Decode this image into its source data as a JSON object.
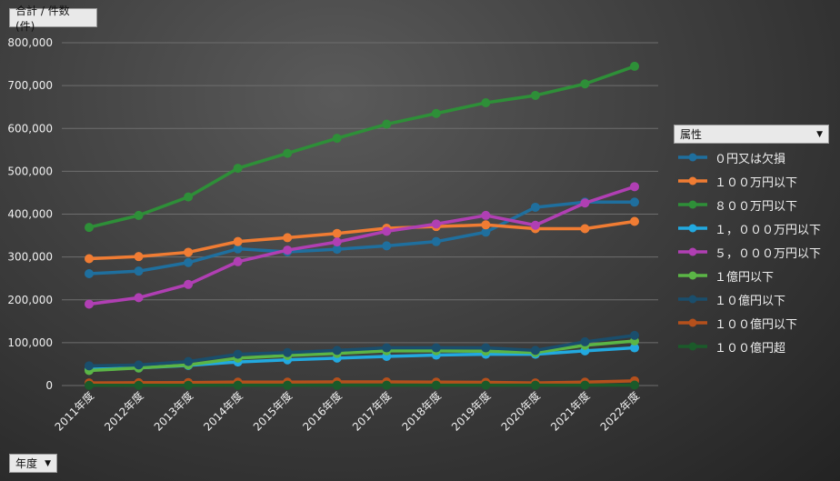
{
  "measure_button": {
    "label": "合計 / 件数 (件)"
  },
  "axis_button": {
    "label": "年度",
    "icon": "dropdown-arrow-icon"
  },
  "legend": {
    "title": "属性",
    "icon": "dropdown-arrow-icon"
  },
  "chart_data": {
    "type": "line",
    "title": "",
    "xlabel": "",
    "ylabel": "",
    "ylim": [
      0,
      800000
    ],
    "yticks": [
      "0",
      "100,000",
      "200,000",
      "300,000",
      "400,000",
      "500,000",
      "600,000",
      "700,000",
      "800,000"
    ],
    "grid": true,
    "legend_position": "right",
    "categories": [
      "2011年度",
      "2012年度",
      "2013年度",
      "2014年度",
      "2015年度",
      "2016年度",
      "2017年度",
      "2018年度",
      "2019年度",
      "2020年度",
      "2021年度",
      "2022年度"
    ],
    "series": [
      {
        "name": "０円又は欠損",
        "color": "#1f6f9e",
        "values": [
          261000,
          267000,
          287000,
          319000,
          312000,
          318000,
          326000,
          336000,
          358000,
          416000,
          428000,
          428000
        ]
      },
      {
        "name": "１００万円以下",
        "color": "#f07c33",
        "values": [
          296000,
          301000,
          311000,
          336000,
          345000,
          355000,
          367000,
          371000,
          375000,
          366000,
          366000,
          383000
        ]
      },
      {
        "name": "８００万円以下",
        "color": "#2e8f38",
        "values": [
          369000,
          397000,
          440000,
          507000,
          542000,
          577000,
          610000,
          635000,
          660000,
          677000,
          704000,
          745000
        ]
      },
      {
        "name": "１，０００万円以下",
        "color": "#22a9e0",
        "values": [
          38000,
          41000,
          47000,
          55000,
          60000,
          64000,
          68000,
          71000,
          73000,
          73000,
          81000,
          88000
        ]
      },
      {
        "name": "５，０００万円以下",
        "color": "#b03fb3",
        "values": [
          190000,
          205000,
          236000,
          289000,
          316000,
          335000,
          360000,
          377000,
          397000,
          374000,
          426000,
          464000
        ]
      },
      {
        "name": "１億円以下",
        "color": "#5bb546",
        "values": [
          35000,
          41000,
          48000,
          64000,
          70000,
          75000,
          81000,
          81000,
          80000,
          77000,
          94000,
          104000
        ]
      },
      {
        "name": "１０億円以下",
        "color": "#1a4e6c",
        "values": [
          46000,
          48000,
          56000,
          73000,
          77000,
          82000,
          88000,
          88000,
          88000,
          82000,
          102000,
          117000
        ]
      },
      {
        "name": "１００億円以下",
        "color": "#b5501c",
        "values": [
          6000,
          6500,
          7000,
          8000,
          8000,
          8500,
          8500,
          8000,
          7500,
          6000,
          8000,
          11000
        ]
      },
      {
        "name": "１００億円超",
        "color": "#1b5a2a",
        "values": [
          500,
          500,
          600,
          700,
          700,
          700,
          800,
          800,
          800,
          700,
          900,
          1100
        ]
      }
    ]
  }
}
